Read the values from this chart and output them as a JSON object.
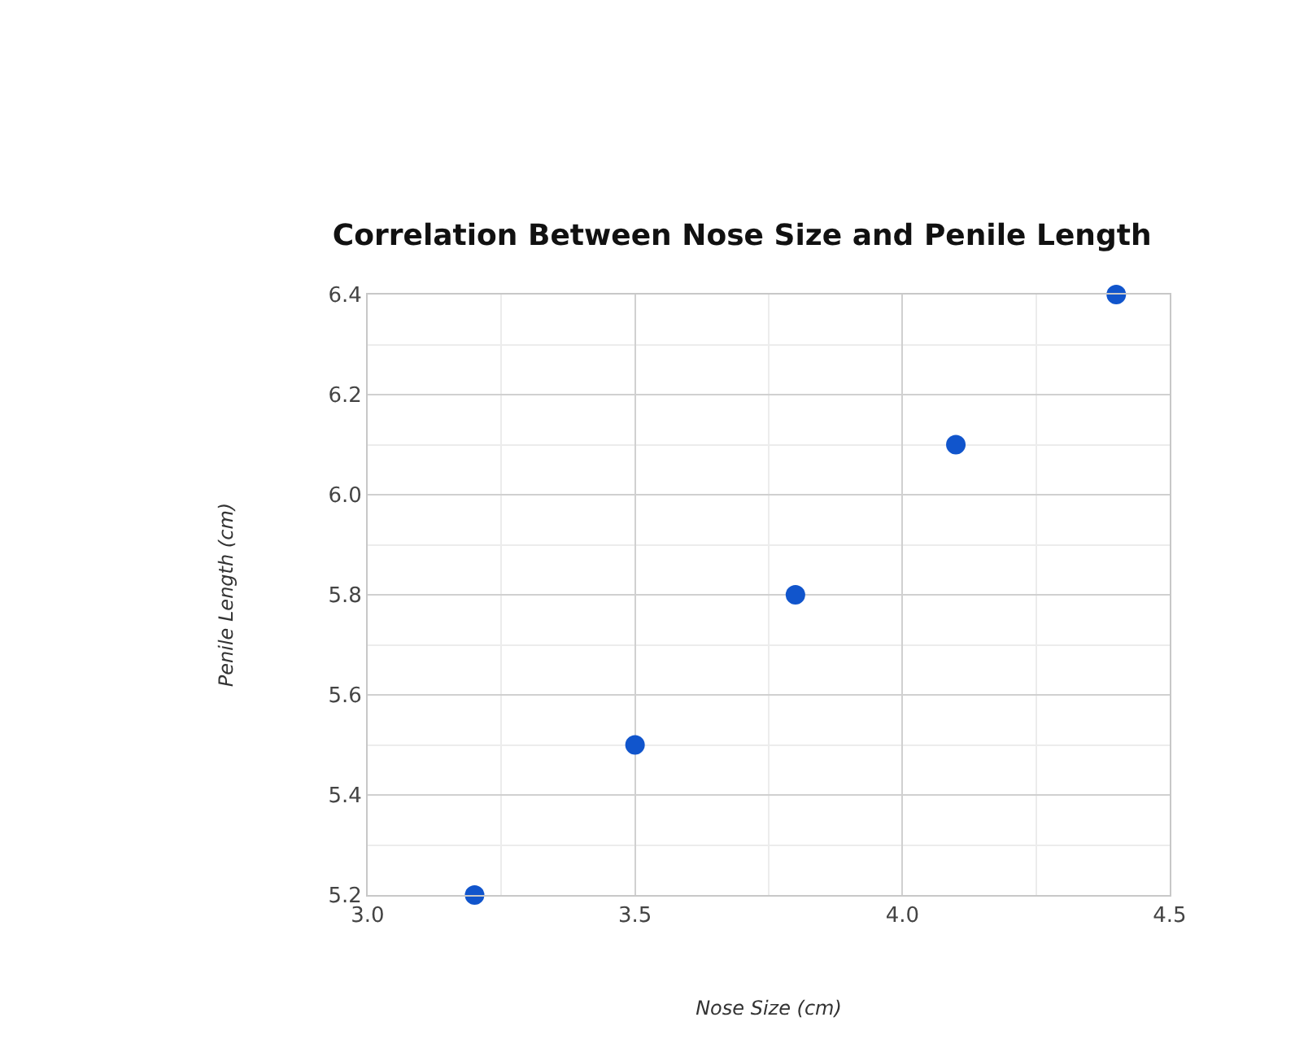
{
  "chart_data": {
    "type": "scatter",
    "title": "Correlation Between Nose Size and Penile Length",
    "xlabel": "Nose Size (cm)",
    "ylabel": "Penile Length (cm)",
    "x": [
      3.2,
      3.5,
      3.8,
      4.1,
      4.4
    ],
    "series": [
      {
        "color": "#1155cc",
        "values": [
          5.2,
          5.5,
          5.8,
          6.1,
          6.4
        ]
      }
    ],
    "xlim": [
      3.0,
      4.5
    ],
    "xticks": [
      {
        "value": 3.0,
        "label": "3.0"
      },
      3.5,
      {
        "value": 4.0,
        "label": "4.0"
      },
      4.5
    ],
    "ylim": [
      5.2,
      6.4
    ],
    "yticks": [
      5.2,
      5.4,
      5.6,
      5.8,
      {
        "value": 6.0,
        "label": "6.0"
      },
      6.2,
      6.4
    ],
    "grid": true,
    "marker": "circle"
  }
}
